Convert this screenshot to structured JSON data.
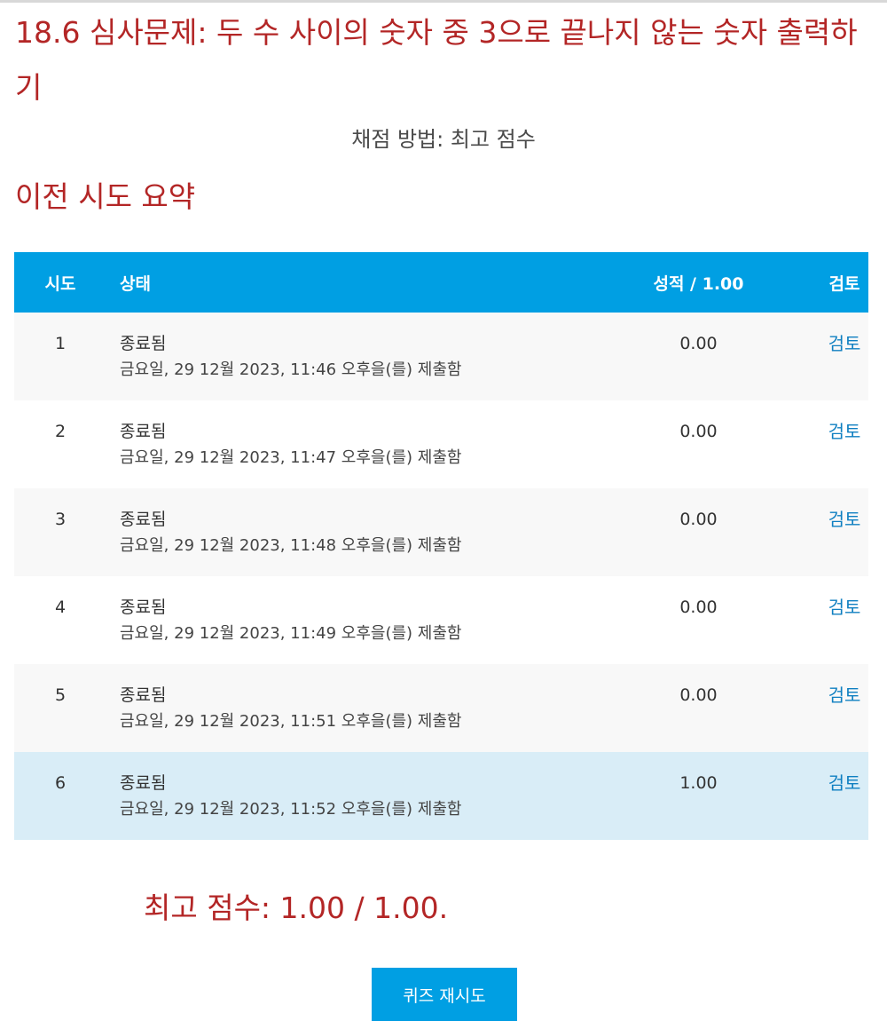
{
  "page": {
    "title": "18.6 심사문제: 두 수 사이의 숫자 중 3으로 끝나지 않는 숫자 출력하기",
    "grading_method": "채점 방법: 최고 점수",
    "section_heading": "이전 시도 요약"
  },
  "table": {
    "headers": {
      "attempt": "시도",
      "state": "상태",
      "grade": "성적 / 1.00",
      "review": "검토"
    },
    "rows": [
      {
        "attempt": "1",
        "state": "종료됨",
        "submitted": "금요일, 29 12월 2023, 11:46 오후을(를) 제출함",
        "grade": "0.00",
        "review": "검토"
      },
      {
        "attempt": "2",
        "state": "종료됨",
        "submitted": "금요일, 29 12월 2023, 11:47 오후을(를) 제출함",
        "grade": "0.00",
        "review": "검토"
      },
      {
        "attempt": "3",
        "state": "종료됨",
        "submitted": "금요일, 29 12월 2023, 11:48 오후을(를) 제출함",
        "grade": "0.00",
        "review": "검토"
      },
      {
        "attempt": "4",
        "state": "종료됨",
        "submitted": "금요일, 29 12월 2023, 11:49 오후을(를) 제출함",
        "grade": "0.00",
        "review": "검토"
      },
      {
        "attempt": "5",
        "state": "종료됨",
        "submitted": "금요일, 29 12월 2023, 11:51 오후을(를) 제출함",
        "grade": "0.00",
        "review": "검토"
      },
      {
        "attempt": "6",
        "state": "종료됨",
        "submitted": "금요일, 29 12월 2023, 11:52 오후을(를) 제출함",
        "grade": "1.00",
        "review": "검토"
      }
    ]
  },
  "summary": {
    "best_grade": "최고 점수: 1.00 / 1.00."
  },
  "actions": {
    "retake_label": "퀴즈 재시도"
  },
  "colors": {
    "heading": "#b32626",
    "accent": "#009fe3",
    "link": "#0f7fc1",
    "highlight_row": "#d9edf7"
  }
}
